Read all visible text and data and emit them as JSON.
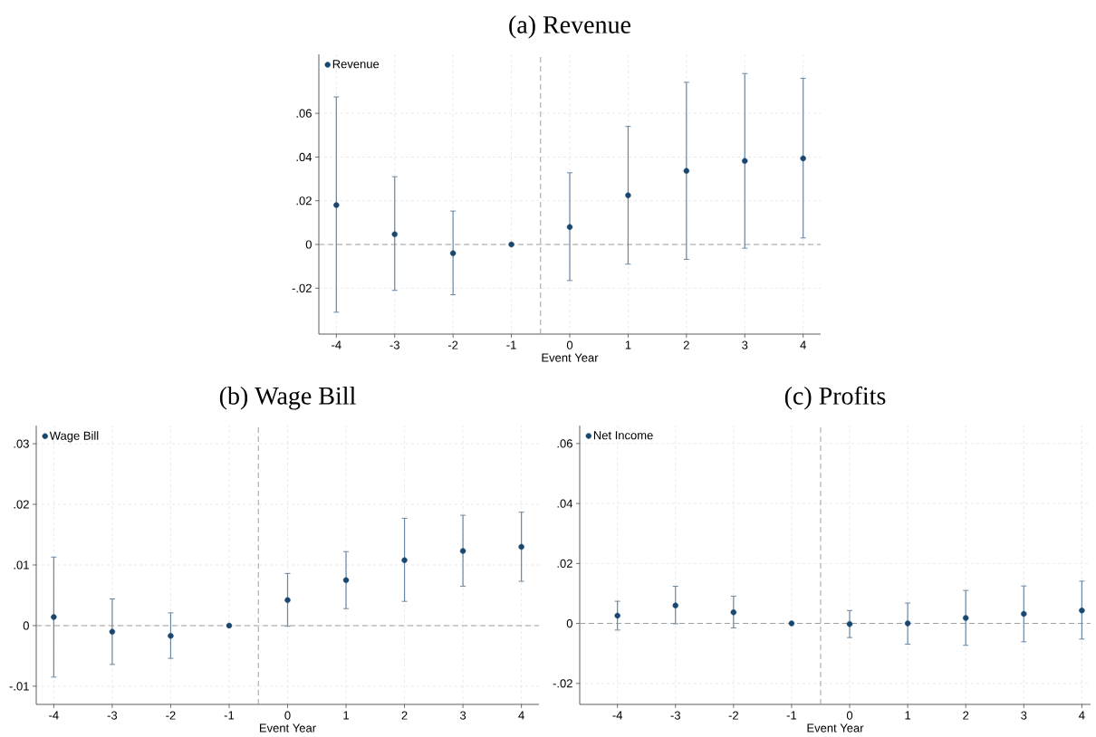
{
  "chart_data": [
    {
      "type": "scatter",
      "title": "(a) Revenue",
      "xlabel": "Event Year",
      "marker": "circle",
      "grid": true,
      "legend": "top left",
      "x": [
        -4,
        -3,
        -2,
        -1,
        0,
        1,
        2,
        3,
        4
      ],
      "series": [
        {
          "name": "Revenue",
          "color": "#1a476f",
          "values": [
            0.018,
            0.0047,
            -0.004,
            0,
            0.008,
            0.0225,
            0.0337,
            0.0382,
            0.0394
          ],
          "errors": [
            [
              -0.031,
              0.0675
            ],
            [
              -0.021,
              0.031
            ],
            [
              -0.023,
              0.0153
            ],
            null,
            [
              -0.0165,
              0.0328
            ],
            [
              -0.009,
              0.054
            ],
            [
              -0.0068,
              0.0742
            ],
            [
              -0.0017,
              0.0782
            ],
            [
              0.003,
              0.076
            ]
          ]
        }
      ],
      "xlim": [
        -4.3,
        4.3
      ],
      "ylim": [
        -0.041,
        0.087
      ],
      "xticks": [
        -4,
        -3,
        -2,
        -1,
        0,
        1,
        2,
        3,
        4
      ],
      "yticks": [
        {
          "value": -0.02,
          "label": "-.02"
        },
        {
          "value": 0,
          "label": "0"
        },
        {
          "value": 0.02,
          "label": ".02"
        },
        {
          "value": 0.04,
          "label": ".04"
        },
        {
          "value": 0.06,
          "label": ".06"
        }
      ],
      "ref_lines": [
        {
          "axis": "y",
          "value": 0,
          "color": "#a0a0a0",
          "line_style": "dashed"
        },
        {
          "axis": "x",
          "value": -0.5,
          "color": "#a0a0a0",
          "line_style": "dashed"
        }
      ]
    },
    {
      "type": "scatter",
      "title": "(b) Wage Bill",
      "xlabel": "Event Year",
      "marker": "circle",
      "grid": true,
      "legend": "top left",
      "x": [
        -4,
        -3,
        -2,
        -1,
        0,
        1,
        2,
        3,
        4
      ],
      "series": [
        {
          "name": "Wage Bill",
          "color": "#1a476f",
          "values": [
            0.0014,
            -0.001,
            -0.0017,
            0,
            0.0042,
            0.0075,
            0.0108,
            0.0123,
            0.013
          ],
          "errors": [
            [
              -0.0085,
              0.0113
            ],
            [
              -0.0064,
              0.0044
            ],
            [
              -0.0054,
              0.0021
            ],
            null,
            [
              -0.0001,
              0.0086
            ],
            [
              0.0028,
              0.0122
            ],
            [
              0.004,
              0.0177
            ],
            [
              0.0065,
              0.0182
            ],
            [
              0.0073,
              0.0187
            ]
          ]
        }
      ],
      "xlim": [
        -4.3,
        4.3
      ],
      "ylim": [
        -0.013,
        0.033
      ],
      "xticks": [
        -4,
        -3,
        -2,
        -1,
        0,
        1,
        2,
        3,
        4
      ],
      "yticks": [
        {
          "value": -0.01,
          "label": "-.01"
        },
        {
          "value": 0,
          "label": "0"
        },
        {
          "value": 0.01,
          "label": ".01"
        },
        {
          "value": 0.02,
          "label": ".02"
        },
        {
          "value": 0.03,
          "label": ".03"
        }
      ],
      "ref_lines": [
        {
          "axis": "y",
          "value": 0,
          "color": "#a0a0a0",
          "line_style": "dashed"
        },
        {
          "axis": "x",
          "value": -0.5,
          "color": "#a0a0a0",
          "line_style": "dashed"
        }
      ]
    },
    {
      "type": "scatter",
      "title": "(c) Profits",
      "xlabel": "Event Year",
      "marker": "circle",
      "grid": true,
      "legend": "top left",
      "x": [
        -4,
        -3,
        -2,
        -1,
        0,
        1,
        2,
        3,
        4
      ],
      "series": [
        {
          "name": "Net Income",
          "color": "#1a476f",
          "values": [
            0.0026,
            0.006,
            0.0037,
            0,
            -0.0002,
            0,
            0.0018,
            0.0032,
            0.0043
          ],
          "errors": [
            [
              -0.0022,
              0.0074
            ],
            [
              -0.0001,
              0.0124
            ],
            [
              -0.0015,
              0.0091
            ],
            null,
            [
              -0.0047,
              0.0043
            ],
            [
              -0.0069,
              0.0068
            ],
            [
              -0.0073,
              0.011
            ],
            [
              -0.0061,
              0.0125
            ],
            [
              -0.0052,
              0.0141
            ]
          ]
        }
      ],
      "xlim": [
        -4.65,
        4.15
      ],
      "ylim": [
        -0.027,
        0.066
      ],
      "xticks": [
        -4,
        -3,
        -2,
        -1,
        0,
        1,
        2,
        3,
        4
      ],
      "yticks": [
        {
          "value": -0.02,
          "label": "-.02"
        },
        {
          "value": 0,
          "label": "0"
        },
        {
          "value": 0.02,
          "label": ".02"
        },
        {
          "value": 0.04,
          "label": ".04"
        },
        {
          "value": 0.06,
          "label": ".06"
        }
      ],
      "ref_lines": [
        {
          "axis": "y",
          "value": 0,
          "color": "#a0a0a0",
          "line_style": "dashed"
        },
        {
          "axis": "x",
          "value": -0.5,
          "color": "#a0a0a0",
          "line_style": "dashed"
        }
      ]
    }
  ]
}
